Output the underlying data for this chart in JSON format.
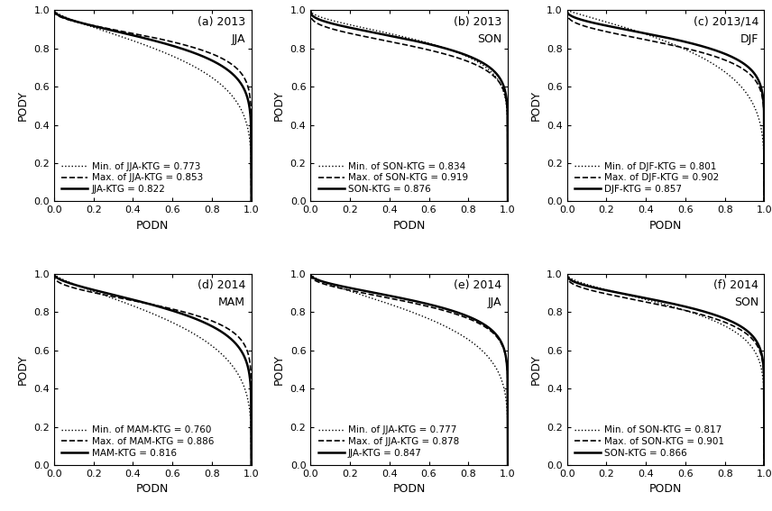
{
  "panels": [
    {
      "label_line1": "(a) 2013",
      "label_line2": "JJA",
      "ktg_auc": 0.822,
      "max_auc": 0.853,
      "min_auc": 0.773,
      "ktg_name": "JJA-KTG",
      "ktg_p": 0.18,
      "max_p": 0.14,
      "min_p": 0.26
    },
    {
      "label_line1": "(b) 2013",
      "label_line2": "SON",
      "ktg_auc": 0.876,
      "max_auc": 0.919,
      "min_auc": 0.834,
      "ktg_name": "SON-KTG",
      "ktg_p": 0.12,
      "max_p": 0.08,
      "min_p": 0.18
    },
    {
      "label_line1": "(c) 2013/14",
      "label_line2": "DJF",
      "ktg_auc": 0.857,
      "max_auc": 0.902,
      "min_auc": 0.801,
      "ktg_name": "DJF-KTG",
      "ktg_p": 0.14,
      "max_p": 0.09,
      "min_p": 0.35
    },
    {
      "label_line1": "(d) 2014",
      "label_line2": "MAM",
      "ktg_auc": 0.816,
      "max_auc": 0.886,
      "min_auc": 0.76,
      "ktg_name": "MAM-KTG",
      "ktg_p": 0.19,
      "max_p": 0.11,
      "min_p": 0.28
    },
    {
      "label_line1": "(e) 2014",
      "label_line2": "JJA",
      "ktg_auc": 0.847,
      "max_auc": 0.878,
      "min_auc": 0.777,
      "ktg_name": "JJA-KTG",
      "ktg_p": 0.16,
      "max_p": 0.13,
      "min_p": 0.25
    },
    {
      "label_line1": "(f) 2014",
      "label_line2": "SON",
      "ktg_auc": 0.866,
      "max_auc": 0.901,
      "min_auc": 0.817,
      "ktg_name": "SON-KTG",
      "ktg_p": 0.13,
      "max_p": 0.1,
      "min_p": 0.19
    }
  ],
  "line_color": "#000000",
  "bg_color": "#ffffff",
  "tick_fontsize": 8,
  "label_fontsize": 9,
  "legend_fontsize": 7.5
}
